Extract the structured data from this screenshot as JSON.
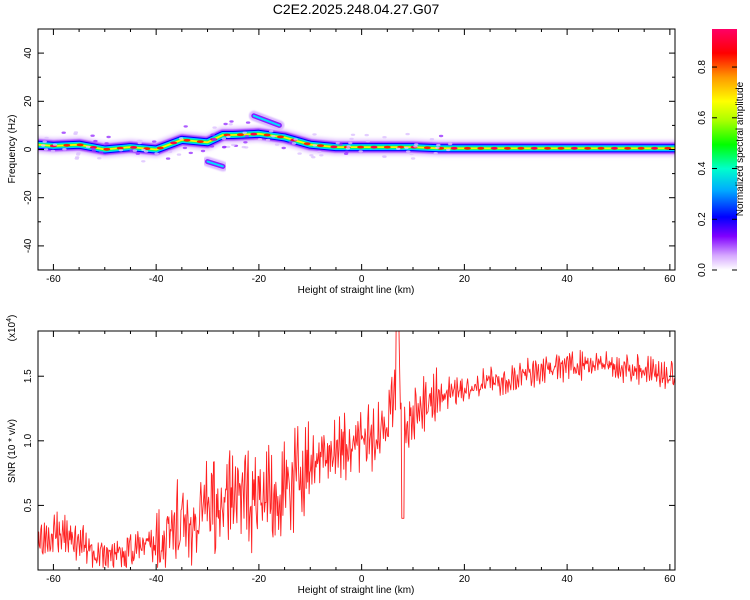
{
  "title": "C2E2.2025.248.04.27.G07",
  "chart_data": [
    {
      "type": "heatmap",
      "name": "spectrogram",
      "xlabel": "Height of straight line (km)",
      "ylabel": "Frequency (Hz)",
      "xlim": [
        -63,
        61
      ],
      "ylim": [
        -50,
        50
      ],
      "xticks": [
        -60,
        -40,
        -20,
        0,
        20,
        40,
        60
      ],
      "yticks": [
        -40,
        -20,
        0,
        20,
        40
      ],
      "colorbar": {
        "label": "Normalized spectral amplitude",
        "range": [
          0,
          0.95
        ],
        "ticks": [
          "0.0",
          "0.2",
          "0.4",
          "0.6",
          "0.8"
        ],
        "colormap": [
          "#ffffff",
          "#c896ff",
          "#7800ff",
          "#0000ff",
          "#00c8ff",
          "#00ff78",
          "#00ff00",
          "#c8ff00",
          "#ffff00",
          "#ff8c00",
          "#ff0000",
          "#ff0064"
        ]
      },
      "ridge": {
        "x": [
          -63,
          -60,
          -55,
          -50,
          -45,
          -40,
          -35,
          -30,
          -27,
          -25,
          -20,
          -15,
          -10,
          -5,
          0,
          5,
          10,
          15,
          20,
          30,
          40,
          50,
          61
        ],
        "y": [
          2,
          1.5,
          2,
          0,
          1,
          0,
          4,
          3,
          6,
          6,
          6.5,
          5,
          2,
          1,
          1,
          1,
          1,
          0.5,
          0.5,
          0.5,
          0.5,
          0.5,
          0.5
        ]
      },
      "side_branches": [
        {
          "x": [
            -30,
            -27
          ],
          "y": [
            -5,
            -7
          ]
        },
        {
          "x": [
            -21,
            -16
          ],
          "y": [
            14,
            10
          ]
        }
      ]
    },
    {
      "type": "line",
      "name": "snr",
      "xlabel": "Height of straight line (km)",
      "ylabel": "SNR (10 * v/v)",
      "y_multiplier": "(x10",
      "y_multiplier_exp": "4",
      "y_multiplier_close": ")",
      "xlim": [
        -63,
        61
      ],
      "ylim": [
        0,
        1.85
      ],
      "xticks": [
        -60,
        -40,
        -20,
        0,
        20,
        40,
        60
      ],
      "yticks": [
        "0.5",
        "1.0",
        "1.5"
      ],
      "color": "#ff2020",
      "series": [
        {
          "x": [
            -63,
            -60,
            -55,
            -50,
            -45,
            -40,
            -35,
            -30,
            -25,
            -20,
            -15,
            -10,
            -5,
            0,
            3,
            5,
            7,
            9,
            12,
            15,
            20,
            25,
            30,
            35,
            40,
            45,
            50,
            55,
            61
          ],
          "y": [
            0.25,
            0.3,
            0.2,
            0.1,
            0.15,
            0.2,
            0.35,
            0.5,
            0.6,
            0.55,
            0.6,
            0.85,
            0.95,
            1.0,
            1.05,
            1.2,
            1.35,
            1.1,
            1.3,
            1.35,
            1.4,
            1.45,
            1.5,
            1.55,
            1.58,
            1.6,
            1.58,
            1.55,
            1.5
          ]
        }
      ]
    }
  ]
}
